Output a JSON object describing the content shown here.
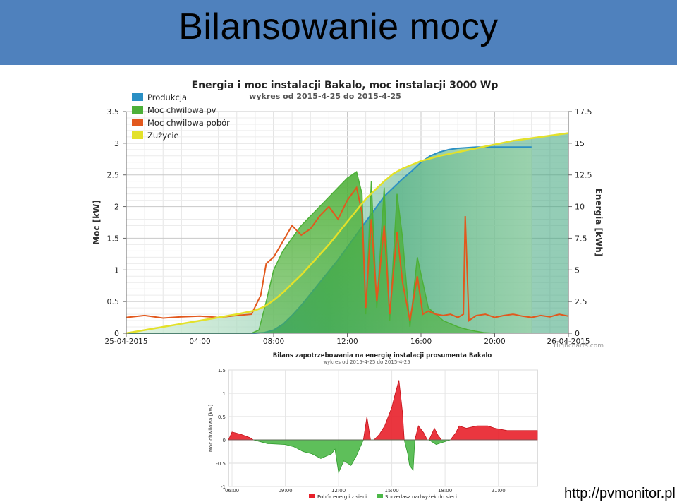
{
  "slide": {
    "title": "Bilansowanie mocy",
    "footer_url": "http://pvmonitor.pl"
  },
  "chart_data": [
    {
      "type": "area",
      "title": "Energia i moc instalacji Bakalo, moc instalacji 3000 Wp",
      "subtitle": "wykres od 2015-4-25 do 2015-4-25",
      "ylabel_left": "Moc [kW]",
      "ylabel_right": "Energia [kWh]",
      "ylim_left": [
        0,
        3.5
      ],
      "ylim_right": [
        0,
        17.5
      ],
      "yticks_left": [
        "0",
        "0.5",
        "1",
        "1.5",
        "2",
        "2.5",
        "3",
        "3.5"
      ],
      "yticks_right": [
        "0",
        "2.5",
        "5",
        "7.5",
        "10",
        "12.5",
        "15",
        "17.5"
      ],
      "xlim_hours": [
        0,
        24
      ],
      "xtick_labels": [
        {
          "h": 0,
          "label": "25-04-2015"
        },
        {
          "h": 4,
          "label": "04:00"
        },
        {
          "h": 8,
          "label": "08:00"
        },
        {
          "h": 12,
          "label": "12:00"
        },
        {
          "h": 16,
          "label": "16:00"
        },
        {
          "h": 20,
          "label": "20:00"
        },
        {
          "h": 24,
          "label": "26-04-2015"
        }
      ],
      "credit": "Highcharts.com",
      "legend_position": "top-left",
      "colors": {
        "produkcja": "#2a8fc4",
        "pv": "#4db038",
        "pobor": "#e2581d",
        "zuzycie": "#e3e12a"
      },
      "series": [
        {
          "name": "Produkcja",
          "axis": "right",
          "x": [
            0,
            7,
            7.5,
            8,
            8.5,
            9,
            9.5,
            10,
            10.5,
            11,
            11.5,
            12,
            12.5,
            13,
            13.5,
            14,
            14.5,
            15,
            15.5,
            16,
            16.5,
            17,
            17.5,
            18,
            19,
            20,
            21,
            22
          ],
          "values": [
            0,
            0,
            0.05,
            0.25,
            0.7,
            1.4,
            2.2,
            3.1,
            4.0,
            4.9,
            5.8,
            6.8,
            7.8,
            8.8,
            9.8,
            10.8,
            11.5,
            12.2,
            12.8,
            13.5,
            14.0,
            14.3,
            14.5,
            14.6,
            14.7,
            14.7,
            14.7,
            14.7
          ]
        },
        {
          "name": "Moc chwilowa pv",
          "axis": "left",
          "x": [
            0,
            6.8,
            7.2,
            7.6,
            8.0,
            8.5,
            9.0,
            9.5,
            10.0,
            10.5,
            11.0,
            11.5,
            12.0,
            12.5,
            12.8,
            13.0,
            13.3,
            13.6,
            14.0,
            14.3,
            14.7,
            15.0,
            15.4,
            15.8,
            16.1,
            16.4,
            16.8,
            17.2,
            17.6,
            18.0,
            18.5,
            19.0,
            19.4,
            20.0
          ],
          "values": [
            0,
            0,
            0.05,
            0.5,
            1.0,
            1.3,
            1.5,
            1.7,
            1.85,
            2.0,
            2.15,
            2.3,
            2.45,
            2.55,
            2.2,
            0.3,
            2.4,
            0.4,
            2.3,
            0.2,
            2.2,
            1.5,
            0.1,
            1.2,
            0.8,
            0.4,
            0.3,
            0.2,
            0.15,
            0.1,
            0.06,
            0.03,
            0.01,
            0
          ]
        },
        {
          "name": "Moc chwilowa pobór",
          "axis": "left",
          "x": [
            0,
            1,
            2,
            3,
            4,
            5,
            6,
            6.8,
            7.3,
            7.6,
            8.0,
            8.5,
            9.0,
            9.5,
            10.0,
            10.5,
            11.0,
            11.5,
            12.0,
            12.5,
            12.8,
            13.0,
            13.3,
            13.6,
            14.0,
            14.3,
            14.7,
            15.0,
            15.4,
            15.8,
            16.1,
            16.4,
            16.8,
            17.2,
            17.6,
            18.0,
            18.3,
            18.4,
            18.6,
            19.0,
            19.5,
            20.0,
            20.5,
            21.0,
            21.5,
            22.0,
            22.5,
            23.0,
            23.5,
            24.0
          ],
          "values": [
            0.25,
            0.28,
            0.24,
            0.26,
            0.27,
            0.25,
            0.28,
            0.3,
            0.6,
            1.1,
            1.2,
            1.45,
            1.7,
            1.55,
            1.65,
            1.85,
            2.0,
            1.8,
            2.1,
            2.3,
            1.9,
            0.4,
            1.8,
            0.5,
            1.7,
            0.3,
            1.6,
            0.8,
            0.2,
            0.9,
            0.3,
            0.35,
            0.3,
            0.28,
            0.3,
            0.25,
            0.3,
            1.85,
            0.2,
            0.28,
            0.3,
            0.25,
            0.28,
            0.3,
            0.27,
            0.25,
            0.28,
            0.26,
            0.3,
            0.27
          ]
        },
        {
          "name": "Zużycie",
          "axis": "right",
          "x": [
            0,
            2,
            4,
            6,
            7,
            7.5,
            8,
            8.5,
            9,
            9.5,
            10,
            10.5,
            11,
            11.5,
            12,
            12.5,
            13,
            13.5,
            14,
            14.5,
            15,
            15.5,
            16,
            17,
            18,
            19,
            20,
            21,
            22,
            23,
            24
          ],
          "values": [
            0,
            0.5,
            1.0,
            1.5,
            1.8,
            2.1,
            2.6,
            3.2,
            3.9,
            4.6,
            5.4,
            6.2,
            7.0,
            7.9,
            8.8,
            9.7,
            10.6,
            11.3,
            12.0,
            12.6,
            13.0,
            13.3,
            13.6,
            14.0,
            14.3,
            14.6,
            14.9,
            15.2,
            15.4,
            15.6,
            15.8
          ]
        }
      ]
    },
    {
      "type": "area",
      "title": "Bilans zapotrzebowania na energię instalacji prosumenta Bakalo",
      "subtitle": "wykres od 2015-4-25 do 2015-4-25",
      "ylabel": "Moc chwilowa [kW]",
      "ylim": [
        -1,
        1.5
      ],
      "yticks": [
        "-1",
        "-0.5",
        "0",
        "0.5",
        "1",
        "1.5"
      ],
      "xlim_hours": [
        5.8,
        23.2
      ],
      "xtick_labels": [
        {
          "h": 6,
          "label": "06:00"
        },
        {
          "h": 9,
          "label": "09:00"
        },
        {
          "h": 12,
          "label": "12:00"
        },
        {
          "h": 15,
          "label": "15:00"
        },
        {
          "h": 18,
          "label": "18:00"
        },
        {
          "h": 21,
          "label": "21:00"
        }
      ],
      "legend_position": "bottom",
      "colors": {
        "pobor": "#e8202a",
        "sprzedaz": "#4cb848"
      },
      "series": [
        {
          "name": "Pobór energii z sieci",
          "x": [
            5.8,
            6.0,
            6.5,
            7.0,
            7.2,
            13.4,
            13.6,
            13.8,
            14.0,
            14.3,
            14.6,
            14.8,
            15.0,
            15.2,
            15.4,
            15.6,
            15.7,
            16.3,
            16.5,
            16.8,
            17.0,
            17.1,
            17.4,
            17.6,
            17.8,
            18.3,
            18.6,
            18.8,
            19.2,
            19.8,
            20.4,
            20.8,
            21.5,
            22.5,
            23.2
          ],
          "values": [
            0,
            0.17,
            0.12,
            0.05,
            0,
            0,
            0.5,
            0,
            0,
            0.12,
            0.3,
            0.5,
            0.7,
            1.0,
            1.28,
            0.6,
            0,
            0,
            0.3,
            0.15,
            0,
            0,
            0.25,
            0.1,
            0,
            0,
            0.15,
            0.3,
            0.25,
            0.3,
            0.3,
            0.25,
            0.2,
            0.2,
            0.2
          ]
        },
        {
          "name": "Sprzedasz nadwyżek do sieci",
          "x": [
            7.2,
            8.0,
            9.0,
            9.5,
            10.0,
            10.5,
            11.0,
            11.3,
            11.6,
            11.8,
            12.0,
            12.3,
            12.7,
            13.0,
            13.4,
            15.7,
            15.9,
            16.0,
            16.2,
            16.3,
            17.1,
            17.5,
            18.3
          ],
          "values": [
            0,
            -0.08,
            -0.1,
            -0.15,
            -0.25,
            -0.3,
            -0.4,
            -0.35,
            -0.3,
            -0.2,
            -0.7,
            -0.45,
            -0.55,
            -0.35,
            0,
            0,
            -0.3,
            -0.55,
            -0.65,
            0,
            0,
            -0.1,
            0
          ]
        }
      ]
    }
  ]
}
